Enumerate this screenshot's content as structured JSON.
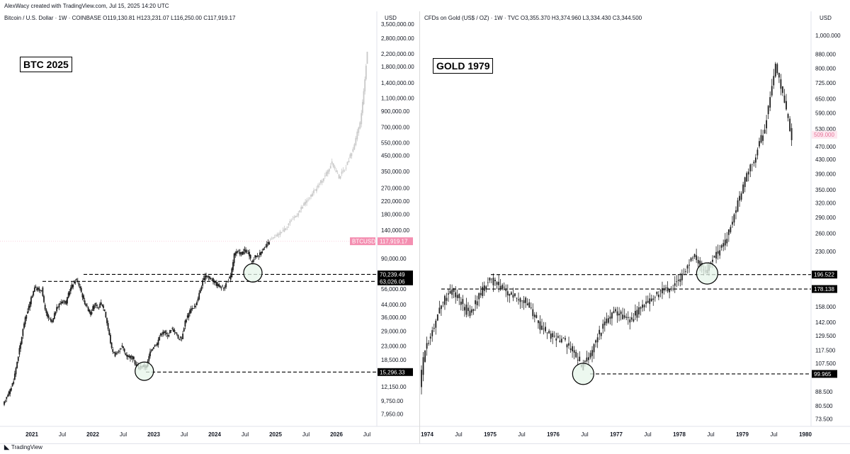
{
  "header": {
    "credit": "AlexWacy created with TradingView.com, Jul 15, 2025 14:20 UTC"
  },
  "footer": {
    "brand": "TradingView"
  },
  "colors": {
    "bar": "#1f1f1f",
    "projection": "#c9c9c9",
    "highlight": "#e5f5ea",
    "price_tag": "#f48fb1"
  },
  "chart_data": [
    {
      "type": "candlestick",
      "legend": "Bitcoin / U.S. Dollar · 1W · COINBASE  O119,130.81  H123,231.07  L116,250.00  C117,919.17",
      "unit": "USD",
      "label": "BTC 2025",
      "scale": "log",
      "ylim": [
        7000,
        3500000
      ],
      "y_ticks": [
        "7,950.00",
        "9,750.00",
        "12,150.00",
        "18,500.00",
        "23,000.00",
        "29,000.00",
        "36,000.00",
        "44,000.00",
        "56,000.00",
        "90,000.00",
        "140,000.00",
        "180,000.00",
        "220,000.00",
        "270,000.00",
        "350,000.00",
        "450,000.00",
        "550,000.00",
        "700,000.00",
        "900,000.00",
        "1,100,000.00",
        "1,400,000.00",
        "1,800,000.00",
        "2,200,000.00",
        "2,800,000.00",
        "3,500,000.00"
      ],
      "x_ticks": [
        "2021",
        "Jul",
        "2022",
        "Jul",
        "2023",
        "Jul",
        "2024",
        "Jul",
        "2025",
        "Jul",
        "2026",
        "Jul"
      ],
      "path": [
        [
          0,
          9000
        ],
        [
          1,
          10500
        ],
        [
          2,
          11500
        ],
        [
          3,
          13500
        ],
        [
          4,
          18000
        ],
        [
          5,
          24000
        ],
        [
          6,
          33000
        ],
        [
          7,
          40000
        ],
        [
          8,
          48000
        ],
        [
          9,
          58000
        ],
        [
          10,
          55000
        ],
        [
          11,
          56000
        ],
        [
          12,
          40000
        ],
        [
          13,
          35000
        ],
        [
          14,
          33000
        ],
        [
          15,
          40000
        ],
        [
          16,
          44000
        ],
        [
          17,
          47000
        ],
        [
          18,
          45000
        ],
        [
          19,
          55000
        ],
        [
          20,
          61000
        ],
        [
          21,
          65000
        ],
        [
          22,
          57000
        ],
        [
          23,
          47000
        ],
        [
          24,
          42000
        ],
        [
          25,
          38000
        ],
        [
          26,
          44000
        ],
        [
          27,
          41000
        ],
        [
          28,
          45000
        ],
        [
          29,
          40000
        ],
        [
          30,
          30000
        ],
        [
          31,
          22000
        ],
        [
          32,
          20000
        ],
        [
          33,
          21000
        ],
        [
          34,
          23000
        ],
        [
          35,
          20000
        ],
        [
          36,
          19500
        ],
        [
          37,
          19000
        ],
        [
          38,
          17000
        ],
        [
          39,
          16500
        ],
        [
          40,
          16800
        ],
        [
          41,
          16700
        ],
        [
          42,
          21000
        ],
        [
          43,
          23000
        ],
        [
          44,
          24000
        ],
        [
          45,
          28000
        ],
        [
          46,
          28500
        ],
        [
          47,
          27000
        ],
        [
          48,
          30000
        ],
        [
          49,
          29000
        ],
        [
          50,
          26000
        ],
        [
          51,
          26000
        ],
        [
          52,
          34000
        ],
        [
          53,
          38000
        ],
        [
          54,
          42000
        ],
        [
          55,
          43000
        ],
        [
          56,
          52000
        ],
        [
          57,
          63000
        ],
        [
          58,
          70000
        ],
        [
          59,
          66000
        ],
        [
          60,
          64000
        ],
        [
          61,
          60000
        ],
        [
          62,
          58000
        ],
        [
          63,
          57000
        ],
        [
          64,
          63000
        ],
        [
          65,
          68000
        ],
        [
          66,
          96000
        ],
        [
          67,
          100000
        ],
        [
          68,
          97000
        ],
        [
          69,
          102000
        ],
        [
          70,
          98000
        ],
        [
          71,
          84000
        ],
        [
          72,
          93000
        ],
        [
          73,
          95000
        ],
        [
          74,
          103000
        ],
        [
          75,
          108000
        ],
        [
          76,
          118000
        ]
      ],
      "projection": [
        [
          76,
          118000
        ],
        [
          78,
          128000
        ],
        [
          80,
          140000
        ],
        [
          82,
          160000
        ],
        [
          84,
          180000
        ],
        [
          86,
          210000
        ],
        [
          88,
          240000
        ],
        [
          90,
          280000
        ],
        [
          92,
          330000
        ],
        [
          94,
          400000
        ],
        [
          96,
          320000
        ],
        [
          98,
          380000
        ],
        [
          100,
          500000
        ],
        [
          102,
          750000
        ],
        [
          103,
          1200000
        ],
        [
          104,
          2300000
        ]
      ],
      "levels": [
        {
          "value": 70239.49,
          "label": "70,239.49"
        },
        {
          "value": 63026.06,
          "label": "63,026.06"
        },
        {
          "value": 15296.33,
          "label": "15,296.33"
        }
      ],
      "last_price": {
        "symbol": "BTCUSD",
        "label": "117,919.17",
        "value": 117919.17
      },
      "circles": [
        {
          "x_index": 40,
          "value": 15500
        },
        {
          "x_index": 71,
          "value": 72000
        }
      ]
    },
    {
      "type": "candlestick",
      "legend": "CFDs on Gold (US$ / OZ) · 1W · TVC  O3,355.370  H3,374.960  L3,334.430  C3,344.500",
      "unit": "USD",
      "label": "GOLD 1979",
      "scale": "log",
      "ylim": [
        72,
        1050
      ],
      "y_ticks": [
        "73.500",
        "80.500",
        "88.500",
        "99.965",
        "107.500",
        "117.500",
        "129.500",
        "142.000",
        "158.000",
        "178.138",
        "196.522",
        "230.000",
        "260.000",
        "290.000",
        "320.000",
        "350.000",
        "390.000",
        "430.000",
        "470.000",
        "530.000",
        "590.000",
        "650.000",
        "725.000",
        "800.000",
        "880.000",
        "1,000.000"
      ],
      "x_ticks": [
        "1974",
        "Jul",
        "1975",
        "Jul",
        "1976",
        "Jul",
        "1977",
        "Jul",
        "1978",
        "Jul",
        "1979",
        "Jul",
        "1980"
      ],
      "path": [
        [
          0,
          92
        ],
        [
          1,
          120
        ],
        [
          2,
          130
        ],
        [
          3,
          145
        ],
        [
          4,
          160
        ],
        [
          5,
          172
        ],
        [
          6,
          175
        ],
        [
          7,
          168
        ],
        [
          8,
          160
        ],
        [
          9,
          150
        ],
        [
          10,
          158
        ],
        [
          11,
          170
        ],
        [
          12,
          180
        ],
        [
          13,
          192
        ],
        [
          14,
          185
        ],
        [
          15,
          180
        ],
        [
          16,
          175
        ],
        [
          17,
          172
        ],
        [
          18,
          168
        ],
        [
          19,
          166
        ],
        [
          20,
          160
        ],
        [
          21,
          150
        ],
        [
          22,
          140
        ],
        [
          23,
          135
        ],
        [
          24,
          130
        ],
        [
          25,
          128
        ],
        [
          26,
          126
        ],
        [
          27,
          125
        ],
        [
          28,
          118
        ],
        [
          29,
          112
        ],
        [
          30,
          105
        ],
        [
          31,
          110
        ],
        [
          32,
          118
        ],
        [
          33,
          130
        ],
        [
          34,
          138
        ],
        [
          35,
          145
        ],
        [
          36,
          152
        ],
        [
          37,
          150
        ],
        [
          38,
          148
        ],
        [
          39,
          144
        ],
        [
          40,
          150
        ],
        [
          41,
          158
        ],
        [
          42,
          162
        ],
        [
          43,
          168
        ],
        [
          44,
          172
        ],
        [
          45,
          176
        ],
        [
          46,
          178
        ],
        [
          47,
          182
        ],
        [
          48,
          188
        ],
        [
          49,
          200
        ],
        [
          50,
          215
        ],
        [
          51,
          225
        ],
        [
          52,
          210
        ],
        [
          53,
          200
        ],
        [
          54,
          215
        ],
        [
          55,
          225
        ],
        [
          56,
          235
        ],
        [
          57,
          255
        ],
        [
          58,
          285
        ],
        [
          59,
          320
        ],
        [
          60,
          360
        ],
        [
          61,
          400
        ],
        [
          62,
          420
        ],
        [
          63,
          480
        ],
        [
          64,
          540
        ],
        [
          65,
          650
        ],
        [
          66,
          820
        ],
        [
          67,
          700
        ],
        [
          68,
          600
        ],
        [
          69,
          500
        ]
      ],
      "levels": [
        {
          "value": 196.522,
          "label": "196.522"
        },
        {
          "value": 178.138,
          "label": "178.138"
        },
        {
          "value": 99.965,
          "label": "99.965"
        }
      ],
      "last_price": {
        "label": "509.000",
        "value": 509
      },
      "circles": [
        {
          "x_index": 30,
          "value": 100
        },
        {
          "x_index": 53,
          "value": 198
        }
      ]
    }
  ]
}
